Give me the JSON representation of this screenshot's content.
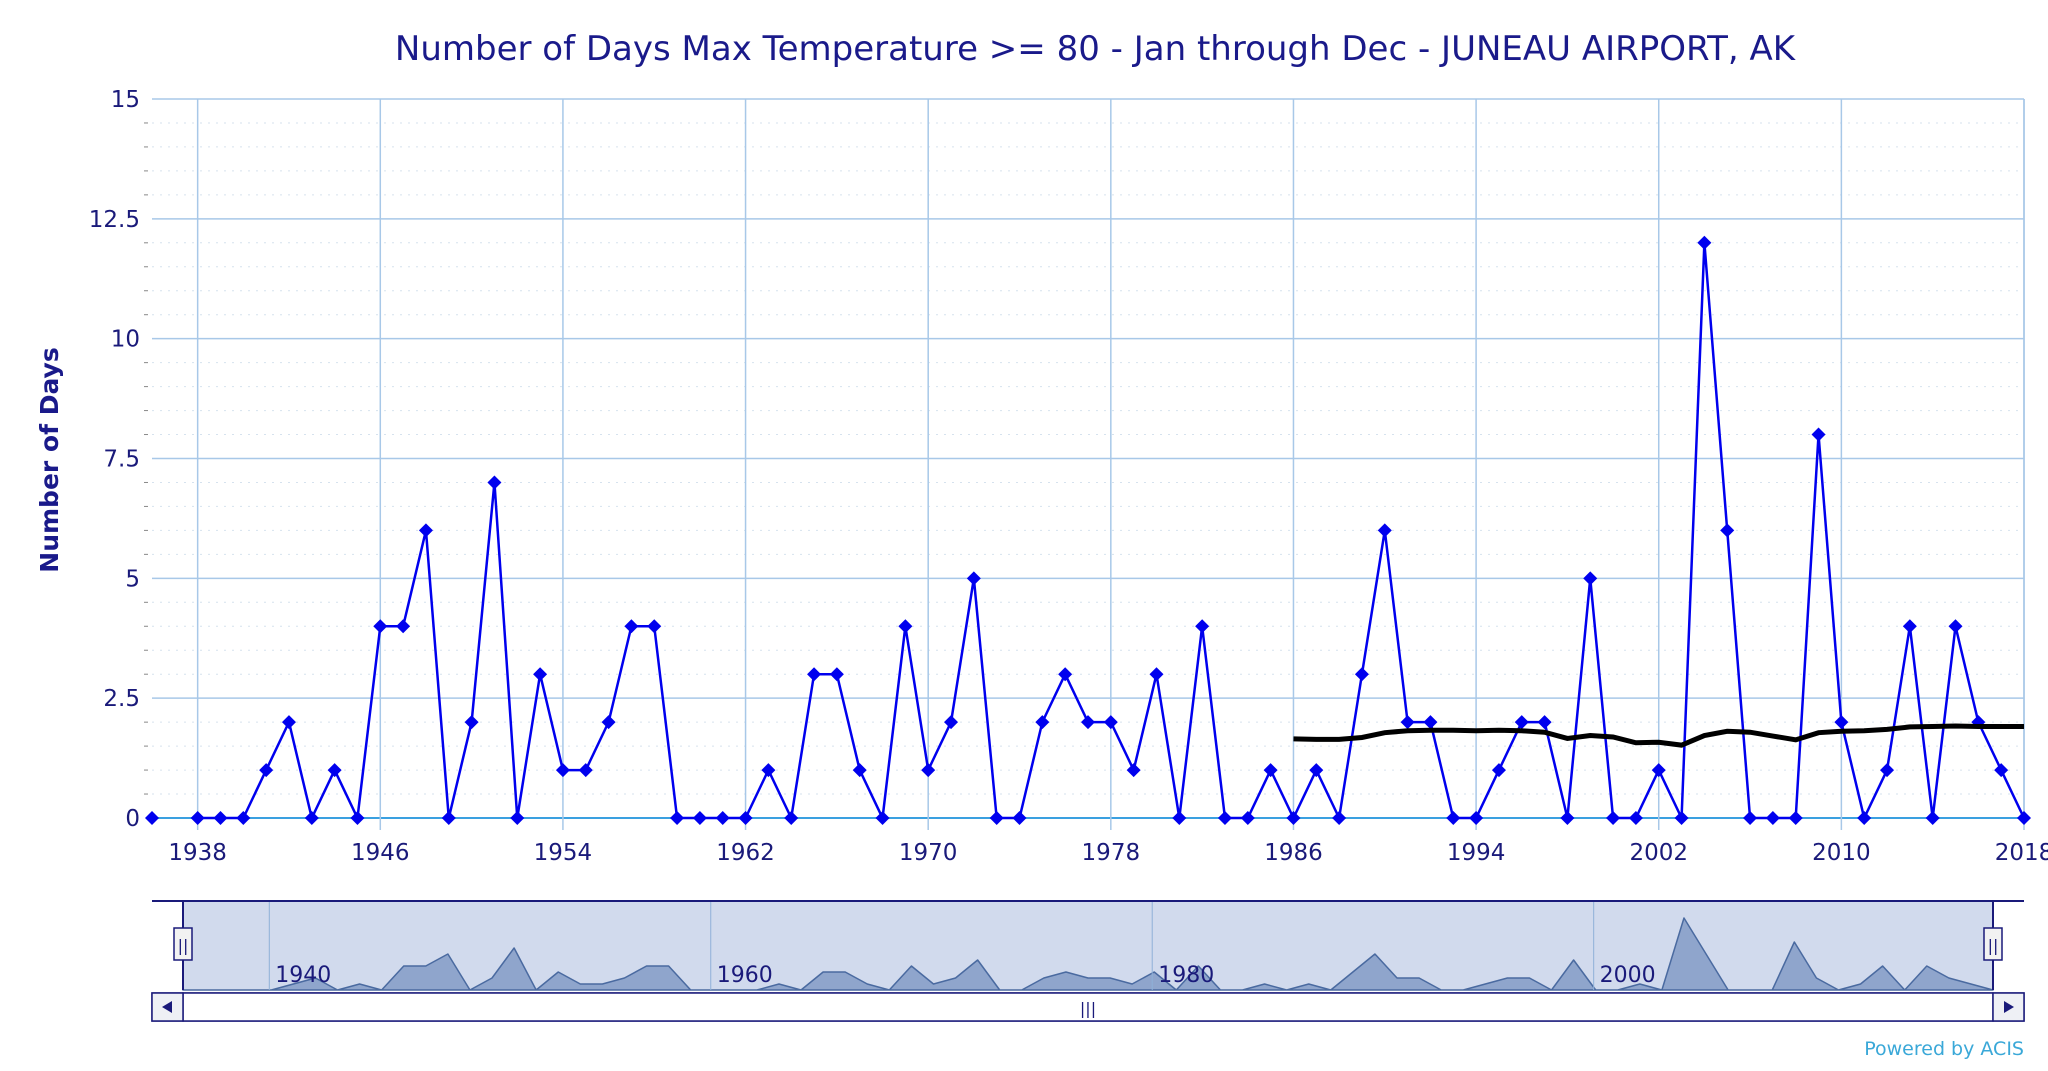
{
  "chart_data": {
    "type": "line",
    "title": "Number of Days Max Temperature >= 80 - Jan through Dec - JUNEAU AIRPORT, AK",
    "xlabel": "",
    "ylabel": "Number of Days",
    "xlim": [
      1936,
      2018
    ],
    "ylim": [
      0,
      15
    ],
    "x_ticks": [
      "1938",
      "1946",
      "1954",
      "1962",
      "1970",
      "1978",
      "1986",
      "1994",
      "2002",
      "2010",
      "2018"
    ],
    "y_ticks": [
      "0",
      "2.5",
      "5",
      "7.5",
      "10",
      "12.5",
      "15"
    ],
    "grid": true,
    "colors": {
      "series": "#0000ee",
      "trend": "#000000",
      "grid": "#a8c8e8",
      "text": "#1a1a7a",
      "navigator": "#ccd6eb"
    },
    "series": [
      {
        "x": [
          1936,
          1937,
          1938,
          1939,
          1940,
          1941,
          1942,
          1943,
          1944,
          1945,
          1946,
          1947,
          1948,
          1949,
          1950,
          1951,
          1952,
          1953,
          1954,
          1955,
          1956,
          1957,
          1958,
          1959,
          1960,
          1961,
          1962,
          1963,
          1964,
          1965,
          1966,
          1967,
          1968,
          1969,
          1970,
          1971,
          1972,
          1973,
          1974,
          1975,
          1976,
          1977,
          1978,
          1979,
          1980,
          1981,
          1982,
          1983,
          1984,
          1985,
          1986,
          1987,
          1988,
          1989,
          1990,
          1991,
          1992,
          1993,
          1994,
          1995,
          1996,
          1997,
          1998,
          1999,
          2000,
          2001,
          2002,
          2003,
          2004,
          2005,
          2006,
          2007,
          2008,
          2009,
          2010,
          2011,
          2012,
          2013,
          2014,
          2015,
          2016,
          2017,
          2018
        ],
        "values": [
          0,
          null,
          0,
          0,
          0,
          1,
          2,
          0,
          1,
          0,
          4,
          4,
          6,
          0,
          2,
          7,
          0,
          3,
          1,
          1,
          2,
          4,
          4,
          0,
          0,
          0,
          0,
          1,
          0,
          3,
          3,
          1,
          0,
          4,
          1,
          2,
          5,
          0,
          0,
          2,
          3,
          2,
          2,
          1,
          3,
          0,
          4,
          0,
          0,
          1,
          0,
          1,
          0,
          3,
          6,
          2,
          2,
          0,
          0,
          1,
          2,
          2,
          0,
          5,
          0,
          0,
          1,
          0,
          12,
          6,
          0,
          0,
          0,
          8,
          2,
          0,
          1,
          4,
          0,
          4,
          2,
          1,
          0
        ]
      },
      {
        "x": [
          1986,
          1987,
          1988,
          1989,
          1990,
          1991,
          1992,
          1993,
          1994,
          1995,
          1996,
          1997,
          1998,
          1999,
          2000,
          2001,
          2002,
          2003,
          2004,
          2005,
          2006,
          2007,
          2008,
          2009,
          2010,
          2011,
          2012,
          2013,
          2014,
          2015,
          2016,
          2017,
          2018
        ],
        "values": [
          1.65,
          1.64,
          1.64,
          1.68,
          1.78,
          1.82,
          1.83,
          1.83,
          1.82,
          1.83,
          1.82,
          1.79,
          1.66,
          1.72,
          1.69,
          1.57,
          1.58,
          1.52,
          1.72,
          1.81,
          1.79,
          1.71,
          1.63,
          1.78,
          1.81,
          1.82,
          1.85,
          1.9,
          1.91,
          1.92,
          1.91,
          1.91,
          1.91
        ]
      }
    ],
    "navigator": {
      "labels": [
        "1940",
        "1960",
        "1980",
        "2000"
      ]
    }
  },
  "footer": {
    "credit": "Powered by ACIS"
  }
}
